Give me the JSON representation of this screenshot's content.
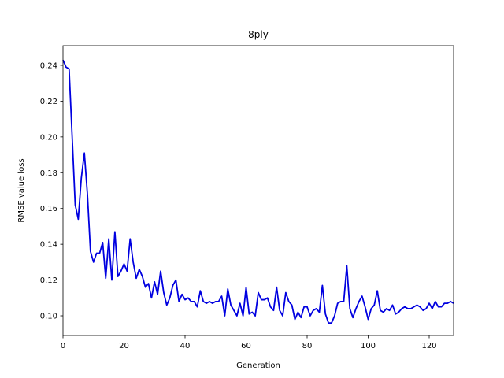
{
  "chart_data": {
    "type": "line",
    "title": "8ply",
    "xlabel": "Generation",
    "ylabel": "RMSE value loss",
    "xlim": [
      0,
      128
    ],
    "ylim": [
      0.089,
      0.251
    ],
    "xticks": [
      0,
      20,
      40,
      60,
      80,
      100,
      120
    ],
    "yticks": [
      0.1,
      0.12,
      0.14,
      0.16,
      0.18,
      0.2,
      0.22,
      0.24
    ],
    "grid": false,
    "series_color": "#0000e0",
    "series": [
      {
        "x": [
          0,
          1,
          2,
          3,
          4,
          5,
          6,
          7,
          8,
          9,
          10,
          11,
          12,
          13,
          14,
          15,
          16,
          17,
          18,
          19,
          20,
          21,
          22,
          23,
          24,
          25,
          26,
          27,
          28,
          29,
          30,
          31,
          32,
          33,
          34,
          35,
          36,
          37,
          38,
          39,
          40,
          41,
          42,
          43,
          44,
          45,
          46,
          47,
          48,
          49,
          50,
          51,
          52,
          53,
          54,
          55,
          56,
          57,
          58,
          59,
          60,
          61,
          62,
          63,
          64,
          65,
          66,
          67,
          68,
          69,
          70,
          71,
          72,
          73,
          74,
          75,
          76,
          77,
          78,
          79,
          80,
          81,
          82,
          83,
          84,
          85,
          86,
          87,
          88,
          89,
          90,
          91,
          92,
          93,
          94,
          95,
          96,
          97,
          98,
          99,
          100,
          101,
          102,
          103,
          104,
          105,
          106,
          107,
          108,
          109,
          110,
          111,
          112,
          113,
          114,
          115,
          116,
          117,
          118,
          119,
          120,
          121,
          122,
          123,
          124,
          125,
          126,
          127,
          128
        ],
        "values": [
          0.243,
          0.239,
          0.238,
          0.2,
          0.162,
          0.154,
          0.177,
          0.191,
          0.168,
          0.136,
          0.13,
          0.135,
          0.135,
          0.141,
          0.121,
          0.143,
          0.12,
          0.147,
          0.122,
          0.125,
          0.129,
          0.125,
          0.143,
          0.13,
          0.121,
          0.126,
          0.122,
          0.116,
          0.118,
          0.11,
          0.119,
          0.112,
          0.125,
          0.113,
          0.106,
          0.11,
          0.117,
          0.12,
          0.108,
          0.112,
          0.109,
          0.11,
          0.108,
          0.108,
          0.105,
          0.114,
          0.108,
          0.107,
          0.108,
          0.107,
          0.108,
          0.108,
          0.111,
          0.1,
          0.115,
          0.106,
          0.103,
          0.1,
          0.107,
          0.1,
          0.116,
          0.101,
          0.102,
          0.1,
          0.113,
          0.109,
          0.109,
          0.11,
          0.105,
          0.103,
          0.116,
          0.103,
          0.1,
          0.113,
          0.108,
          0.106,
          0.098,
          0.102,
          0.099,
          0.105,
          0.105,
          0.1,
          0.103,
          0.104,
          0.102,
          0.117,
          0.101,
          0.096,
          0.096,
          0.1,
          0.107,
          0.108,
          0.108,
          0.128,
          0.104,
          0.099,
          0.104,
          0.108,
          0.111,
          0.105,
          0.098,
          0.104,
          0.106,
          0.114,
          0.103,
          0.102,
          0.104,
          0.103,
          0.106,
          0.101,
          0.102,
          0.104,
          0.105,
          0.104,
          0.104,
          0.105,
          0.106,
          0.105,
          0.103,
          0.104,
          0.107,
          0.104,
          0.108,
          0.105,
          0.105,
          0.107,
          0.107,
          0.108,
          0.107
        ]
      }
    ]
  }
}
